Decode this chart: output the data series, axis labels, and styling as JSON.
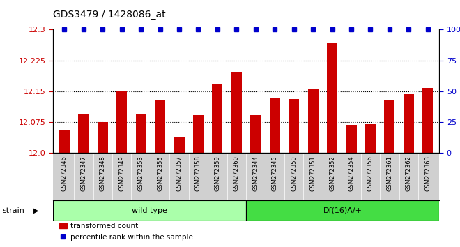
{
  "title": "GDS3479 / 1428086_at",
  "samples": [
    "GSM272346",
    "GSM272347",
    "GSM272348",
    "GSM272349",
    "GSM272353",
    "GSM272355",
    "GSM272357",
    "GSM272358",
    "GSM272359",
    "GSM272360",
    "GSM272344",
    "GSM272345",
    "GSM272350",
    "GSM272351",
    "GSM272352",
    "GSM272354",
    "GSM272356",
    "GSM272361",
    "GSM272362",
    "GSM272363"
  ],
  "bar_values": [
    12.055,
    12.095,
    12.075,
    12.152,
    12.095,
    12.13,
    12.04,
    12.093,
    12.167,
    12.198,
    12.093,
    12.135,
    12.132,
    12.155,
    12.268,
    12.068,
    12.07,
    12.128,
    12.143,
    12.158
  ],
  "percentile_values": [
    100,
    100,
    100,
    100,
    100,
    100,
    100,
    100,
    100,
    100,
    100,
    100,
    100,
    100,
    100,
    100,
    100,
    100,
    100,
    100
  ],
  "group_labels": [
    "wild type",
    "Df(16)A/+"
  ],
  "group_sizes": [
    10,
    10
  ],
  "ylim_left": [
    12.0,
    12.3
  ],
  "ylim_right": [
    0,
    100
  ],
  "yticks_left": [
    12.0,
    12.075,
    12.15,
    12.225,
    12.3
  ],
  "yticks_right": [
    0,
    25,
    50,
    75,
    100
  ],
  "bar_color": "#cc0000",
  "dot_color": "#0000cc",
  "group0_color": "#aaffaa",
  "group1_color": "#44dd44",
  "xtick_bg_color": "#d0d0d0",
  "strain_label": "strain",
  "legend_bar_label": "transformed count",
  "legend_dot_label": "percentile rank within the sample",
  "title_color": "#000000",
  "left_tick_color": "#cc0000",
  "right_tick_color": "#0000cc"
}
